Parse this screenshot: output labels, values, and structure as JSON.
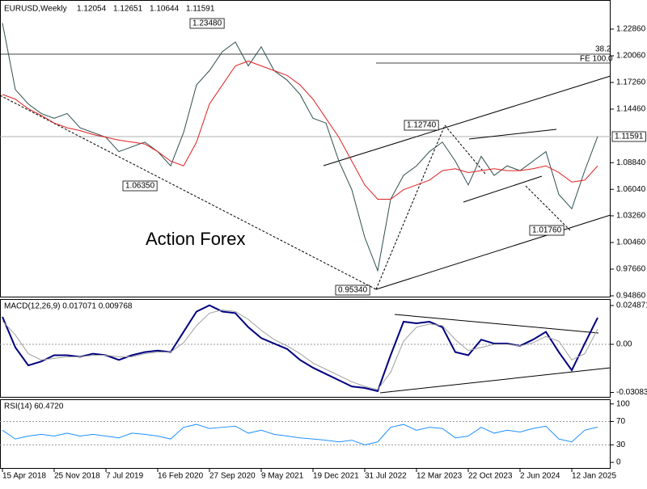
{
  "chart_data": [
    {
      "type": "line",
      "title": "EURUSD,Weekly",
      "header_values": [
        "1.12054",
        "1.12651",
        "1.10644",
        "1.11591"
      ],
      "watermark": "Action Forex",
      "categories": [
        "15 Apr 2018",
        null,
        null,
        null,
        "25 Nov 2018",
        null,
        null,
        null,
        "7 Jul 2019",
        null,
        null,
        null,
        "16 Feb 2020",
        null,
        null,
        null,
        "27 Sep 2020",
        null,
        null,
        null,
        "9 May 2021",
        null,
        null,
        null,
        "19 Dec 2021",
        null,
        null,
        null,
        "31 Jul 2022",
        null,
        null,
        null,
        "12 Mar 2023",
        null,
        null,
        null,
        "22 Oct 2023",
        null,
        null,
        null,
        "2 Jun 2024",
        null,
        null,
        null,
        "12 Jan 2025",
        null,
        null
      ],
      "series": [
        {
          "color": "#2f4f4f",
          "values": [
            1.235,
            1.165,
            1.15,
            1.14,
            1.135,
            1.14,
            1.125,
            1.12,
            1.115,
            1.1,
            1.105,
            1.11,
            1.1,
            1.085,
            1.12,
            1.17,
            1.185,
            1.205,
            1.215,
            1.19,
            1.21,
            1.185,
            1.175,
            1.16,
            1.135,
            1.13,
            1.09,
            1.06,
            1.01,
            0.975,
            1.05,
            1.075,
            1.085,
            1.1,
            1.11,
            1.09,
            1.065,
            1.095,
            1.075,
            1.085,
            1.08,
            1.09,
            1.1,
            1.055,
            1.04,
            1.08,
            1.11591
          ]
        },
        {
          "color": "#e02020",
          "values": [
            1.16,
            1.155,
            1.145,
            1.138,
            1.13,
            1.125,
            1.122,
            1.118,
            1.115,
            1.112,
            1.11,
            1.108,
            1.1,
            1.09,
            1.085,
            1.11,
            1.15,
            1.17,
            1.19,
            1.195,
            1.19,
            1.185,
            1.18,
            1.17,
            1.155,
            1.135,
            1.115,
            1.09,
            1.065,
            1.05,
            1.05,
            1.06,
            1.065,
            1.07,
            1.08,
            1.082,
            1.078,
            1.08,
            1.082,
            1.08,
            1.08,
            1.082,
            1.085,
            1.078,
            1.068,
            1.07,
            1.085
          ]
        }
      ],
      "ylim": [
        0.9469,
        1.25914
      ],
      "yticks": [
        {
          "value": 1.2286,
          "label": "1.22860"
        },
        {
          "value": 1.2006,
          "label": "1.20060"
        },
        {
          "value": 1.1726,
          "label": "1.17260"
        },
        {
          "value": 1.1446,
          "label": "1.14460"
        },
        {
          "value": 1.0884,
          "label": "1.08840"
        },
        {
          "value": 1.0604,
          "label": "1.06040"
        },
        {
          "value": 1.0326,
          "label": "1.03260"
        },
        {
          "value": 1.0046,
          "label": "1.00460"
        },
        {
          "value": 0.9766,
          "label": "0.97660"
        },
        {
          "value": 0.9486,
          "label": "0.94860"
        }
      ],
      "annotations": [
        "1.23480",
        "1.06350",
        "0.95340",
        "1.12740",
        "1.01760",
        "38.2",
        "FE 100.0",
        "1.11591"
      ]
    },
    {
      "type": "line",
      "title": "MACD(12,26,9) 0.017071 0.009768",
      "series": [
        {
          "color": "#000080",
          "values": [
            0.0176,
            -0.002,
            -0.0135,
            -0.011,
            -0.007,
            -0.007,
            -0.008,
            -0.006,
            -0.007,
            -0.01,
            -0.007,
            -0.005,
            -0.004,
            -0.005,
            0.008,
            0.021,
            0.025,
            0.021,
            0.02,
            0.011,
            0.004,
            0.0005,
            -0.003,
            -0.01,
            -0.015,
            -0.019,
            -0.023,
            -0.027,
            -0.028,
            -0.03,
            -0.007,
            0.0145,
            0.0135,
            0.0145,
            0.011,
            -0.005,
            -0.007,
            0.003,
            0.0005,
            0.0005,
            -0.001,
            0.003,
            0.008,
            -0.005,
            -0.0166,
            0.0005,
            0.017071
          ]
        },
        {
          "color": "#a0a0a0",
          "values": [
            0.015,
            0.006,
            -0.006,
            -0.01,
            -0.009,
            -0.008,
            -0.008,
            -0.007,
            -0.007,
            -0.008,
            -0.008,
            -0.006,
            -0.005,
            -0.005,
            0.001,
            0.012,
            0.02,
            0.022,
            0.021,
            0.016,
            0.009,
            0.003,
            -0.001,
            -0.006,
            -0.012,
            -0.016,
            -0.02,
            -0.024,
            -0.027,
            -0.029,
            -0.018,
            0.002,
            0.011,
            0.013,
            0.012,
            0.003,
            -0.004,
            -0.002,
            0,
            0,
            -0.001,
            0.001,
            0.005,
            0.002,
            -0.01,
            -0.006,
            0.009768
          ]
        }
      ],
      "ylim": [
        -0.0342,
        0.02902
      ],
      "yticks": [
        0.024871,
        {
          "value": 0,
          "label": "0.00"
        },
        -0.030836
      ]
    },
    {
      "type": "line",
      "title": "RSI(14) 60.4720",
      "series": [
        {
          "color": "#1e90ff",
          "values": [
            55,
            40,
            45,
            48,
            45,
            50,
            45,
            48,
            45,
            42,
            50,
            48,
            45,
            40,
            60,
            65,
            58,
            60,
            62,
            50,
            55,
            48,
            45,
            42,
            40,
            38,
            35,
            38,
            30,
            35,
            60,
            65,
            55,
            60,
            58,
            42,
            45,
            60,
            50,
            55,
            52,
            58,
            62,
            40,
            35,
            55,
            60.472
          ]
        }
      ],
      "ylim": [
        -11,
        108
      ],
      "yticks": [
        100,
        70,
        30,
        0
      ]
    }
  ]
}
